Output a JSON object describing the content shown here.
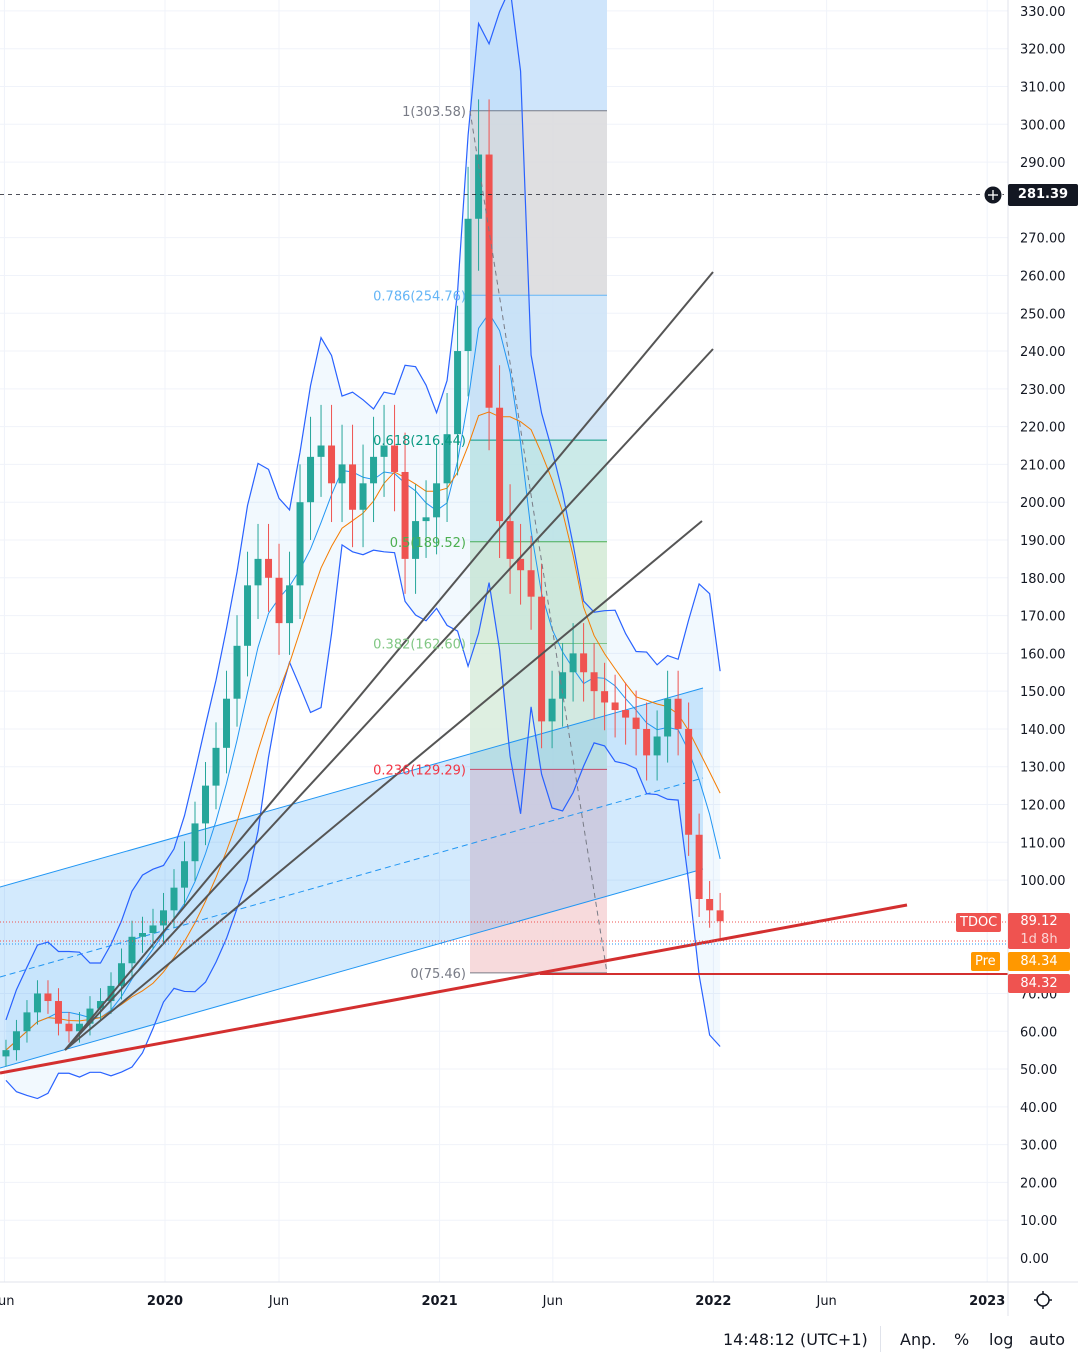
{
  "chart_data": {
    "type": "candlestick",
    "symbol": "TDOC",
    "start": "2019-06-03",
    "interval_days": 14,
    "closes": [
      55,
      60,
      65,
      70,
      68,
      62,
      60,
      62,
      66,
      68,
      72,
      78,
      85,
      86,
      88,
      92,
      98,
      105,
      115,
      125,
      135,
      148,
      162,
      178,
      185,
      180,
      168,
      178,
      200,
      212,
      215,
      205,
      210,
      198,
      205,
      212,
      215,
      208,
      185,
      195,
      196,
      205,
      218,
      240,
      275,
      292,
      225,
      195,
      185,
      182,
      175,
      142,
      148,
      155,
      160,
      155,
      150,
      147,
      145,
      143,
      140,
      133,
      138,
      148,
      140,
      112,
      95,
      92,
      89.12
    ],
    "ylim": [
      0,
      330
    ],
    "y_ticks": [
      "330.00",
      "320.00",
      "310.00",
      "300.00",
      "290.00",
      "270.00",
      "260.00",
      "250.00",
      "240.00",
      "230.00",
      "220.00",
      "210.00",
      "200.00",
      "190.00",
      "180.00",
      "170.00",
      "160.00",
      "150.00",
      "140.00",
      "130.00",
      "120.00",
      "110.00",
      "100.00",
      "70.00",
      "60.00",
      "50.00",
      "40.00",
      "30.00",
      "20.00",
      "10.00",
      "0.00"
    ],
    "y_tick_values": [
      330,
      320,
      310,
      300,
      290,
      270,
      260,
      250,
      240,
      230,
      220,
      210,
      200,
      190,
      180,
      170,
      160,
      150,
      140,
      130,
      120,
      110,
      100,
      70,
      60,
      50,
      40,
      30,
      20,
      10,
      0
    ],
    "x_ticks": [
      {
        "label": "un",
        "date": "2019-06-01",
        "bold": false
      },
      {
        "label": "2020",
        "date": "2020-01-01",
        "bold": true
      },
      {
        "label": "Jun",
        "date": "2020-06-01",
        "bold": false
      },
      {
        "label": "2021",
        "date": "2021-01-01",
        "bold": true
      },
      {
        "label": "Jun",
        "date": "2021-06-01",
        "bold": false
      },
      {
        "label": "2022",
        "date": "2022-01-01",
        "bold": true
      },
      {
        "label": "Jun",
        "date": "2022-06-01",
        "bold": false
      },
      {
        "label": "2023",
        "date": "2023-01-01",
        "bold": true
      }
    ],
    "fib_levels": [
      {
        "ratio": 1,
        "price": 303.58,
        "label": "1(303.58)",
        "color": "#787b86",
        "fill": "#d9d9dc"
      },
      {
        "ratio": 0.786,
        "price": 254.76,
        "label": "0.786(254.76)",
        "color": "#64b5f6",
        "fill": "#cce3f7"
      },
      {
        "ratio": 0.618,
        "price": 216.44,
        "label": "0.618(216.44)",
        "color": "#089981",
        "fill": "#c2e6e4"
      },
      {
        "ratio": 0.5,
        "price": 189.52,
        "label": "0.5(189.52)",
        "color": "#4caf50",
        "fill": "#d2ead5"
      },
      {
        "ratio": 0.382,
        "price": 162.6,
        "label": "0.382(162.60)",
        "color": "#81c784",
        "fill": "#d8ecdc"
      },
      {
        "ratio": 0.236,
        "price": 129.29,
        "label": "0.236(129.29)",
        "color": "#f23645",
        "fill": "#f6d3d6"
      },
      {
        "ratio": 0,
        "price": 75.46,
        "label": "0(75.46)",
        "color": "#787b86",
        "fill": null
      }
    ],
    "crosshair_price": "281.39",
    "colors": {
      "up": "#26a69a",
      "down": "#ef5350",
      "ma_fast": "#2196f3",
      "ma_slow": "#f57c00",
      "bands": "#2962ff",
      "trend": "#d32f2f"
    }
  },
  "price_labels": {
    "symbol_tag": "TDOC",
    "last_price": "89.12",
    "countdown": "1d 8h",
    "pre_tag": "Pre",
    "pre_price": "84.34",
    "line_price": "84.32"
  },
  "bottom_bar": {
    "time": "14:48:12 (UTC+1)",
    "adjust": "Anp.",
    "percent": "%",
    "log": "log",
    "auto": "auto"
  },
  "icons": {
    "settings": "gear-icon",
    "crosshair_add": "plus-circle-icon"
  }
}
